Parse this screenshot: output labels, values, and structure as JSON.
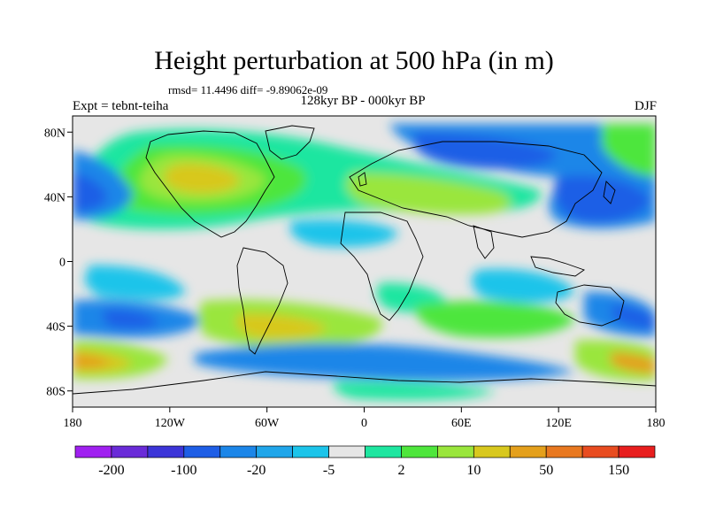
{
  "title": "Height perturbation at 500 hPa (in m)",
  "stats_text": "rmsd= 11.4496 diff= -9.89062e-09",
  "experiment": "Expt = tebnt-teiha",
  "period": "128kyr BP - 000kyr BP",
  "season": "DJF",
  "map": {
    "lat_ticks": [
      "80N",
      "40N",
      "0",
      "40S",
      "80S"
    ],
    "lon_ticks": [
      "180",
      "120W",
      "60W",
      "0",
      "60E",
      "120E",
      "180"
    ],
    "lon_range": [
      -180,
      180
    ],
    "lat_range": [
      -90,
      90
    ],
    "projection": "cylindrical-equidistant",
    "coastlines": true
  },
  "colorbar": {
    "colors": [
      "#a020f0",
      "#6a2bd8",
      "#3c35d8",
      "#1e5ee6",
      "#1c86e8",
      "#20a6ea",
      "#1cc4ea",
      "#e6e6e6",
      "#1ee6a0",
      "#4ee63c",
      "#9ae63c",
      "#d8c81e",
      "#e4a01c",
      "#e87820",
      "#e84c20",
      "#e81e1e"
    ],
    "labels": [
      "-200",
      "-100",
      "-20",
      "-5",
      "2",
      "10",
      "50",
      "150"
    ]
  }
}
